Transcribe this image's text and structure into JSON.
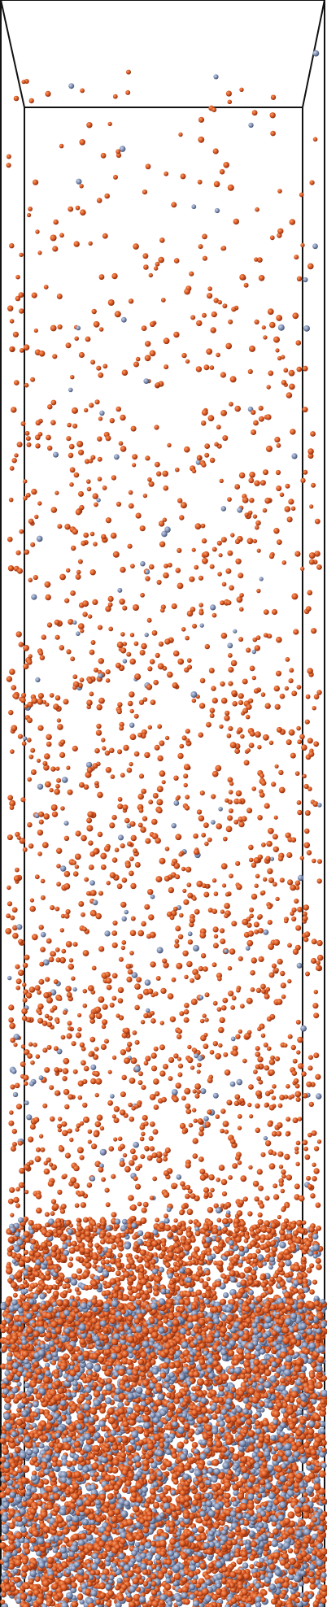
{
  "scene": {
    "kind": "particle-column-render",
    "caption": "",
    "colors": {
      "background": "#ffffff",
      "frame": "#111111",
      "particle_base": "#d9531e",
      "particle_shadow": "#7a2a10",
      "particle_highlight": "#f4a06a",
      "dense_tint": "#5c6d8f"
    },
    "visible_text": []
  }
}
